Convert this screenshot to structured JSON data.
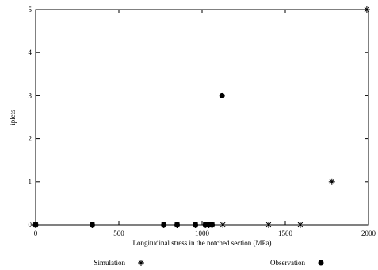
{
  "chart_data": {
    "type": "scatter",
    "title": "",
    "xlabel": "Longitudinal stress in the notched section (MPa)",
    "ylabel": "iplets",
    "xlim": [
      0,
      2000
    ],
    "ylim": [
      0,
      5
    ],
    "x_ticks": [
      "0",
      "500",
      "1000",
      "1500",
      "2000"
    ],
    "y_ticks": [
      "0",
      "1",
      "2",
      "3",
      "4",
      "5"
    ],
    "grid": false,
    "legend_position": "bottom",
    "series": [
      {
        "name": "Simulation",
        "marker": "asterisk",
        "points": [
          [
            0,
            0
          ],
          [
            340,
            0
          ],
          [
            770,
            0
          ],
          [
            850,
            0
          ],
          [
            960,
            0
          ],
          [
            1020,
            0
          ],
          [
            1040,
            0
          ],
          [
            1060,
            0
          ],
          [
            1125,
            0
          ],
          [
            1400,
            0
          ],
          [
            1590,
            0
          ],
          [
            1780,
            1
          ],
          [
            1990,
            5
          ]
        ]
      },
      {
        "name": "Observation",
        "marker": "filled-circle",
        "points": [
          [
            0,
            0
          ],
          [
            340,
            0
          ],
          [
            770,
            0
          ],
          [
            850,
            0
          ],
          [
            960,
            0
          ],
          [
            1020,
            0
          ],
          [
            1040,
            0
          ],
          [
            1060,
            0
          ],
          [
            1120,
            3
          ]
        ]
      }
    ]
  }
}
